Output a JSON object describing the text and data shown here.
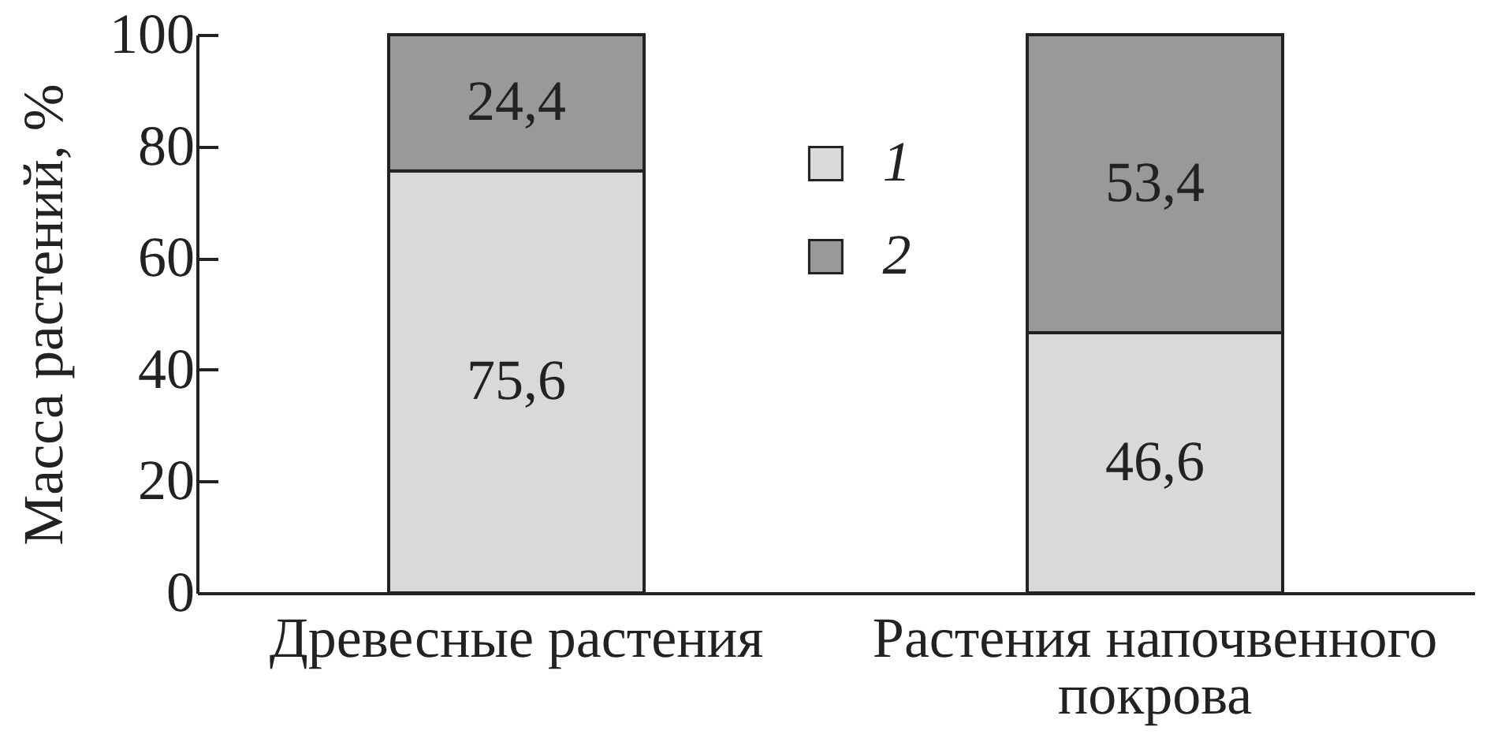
{
  "chart_data": {
    "type": "bar",
    "stacked": true,
    "categories": [
      "Древесные растения",
      "Растения напочвенного покрова"
    ],
    "series": [
      {
        "name": "1",
        "color": "#d9d9d9",
        "values": [
          75.6,
          46.6
        ],
        "value_labels": [
          "75,6",
          "46,6"
        ]
      },
      {
        "name": "2",
        "color": "#999999",
        "values": [
          24.4,
          53.4
        ],
        "value_labels": [
          "24,4",
          "53,4"
        ]
      }
    ],
    "ylabel": "Масса растений, %",
    "ylim": [
      0,
      100
    ],
    "yticks": [
      0,
      20,
      40,
      60,
      80,
      100
    ],
    "grid": false,
    "legend": "top"
  }
}
